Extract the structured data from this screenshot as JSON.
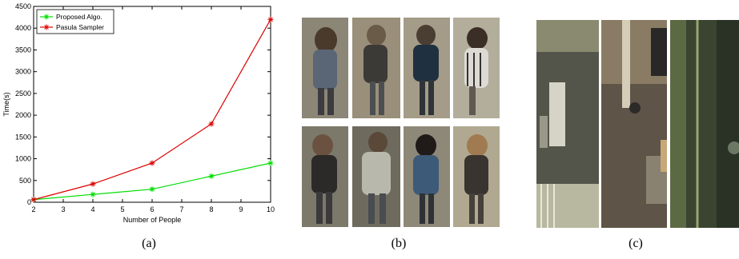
{
  "figure": {
    "captions": [
      "(a)",
      "(b)",
      "(c)"
    ]
  },
  "chart_data": {
    "type": "line",
    "xlabel": "Number of People",
    "ylabel": "Time(s)",
    "xlim": [
      2,
      10
    ],
    "ylim": [
      0,
      4500
    ],
    "xticks": [
      2,
      3,
      4,
      5,
      6,
      7,
      8,
      9,
      10
    ],
    "yticks": [
      0,
      500,
      1000,
      1500,
      2000,
      2500,
      3000,
      3500,
      4000,
      4500
    ],
    "legend_position": "top-left",
    "grid": false,
    "series": [
      {
        "name": "Proposed Algo.",
        "color": "#00dd00",
        "marker": "star",
        "x": [
          2,
          4,
          6,
          8,
          10
        ],
        "y": [
          60,
          180,
          300,
          600,
          900
        ]
      },
      {
        "name": "Pasula Sampler",
        "color": "#dd0000",
        "marker": "star",
        "x": [
          2,
          4,
          6,
          8,
          10
        ],
        "y": [
          60,
          420,
          900,
          1800,
          4200
        ]
      }
    ]
  },
  "photos": {
    "people_tiles": 8,
    "scene_tiles": 3
  }
}
